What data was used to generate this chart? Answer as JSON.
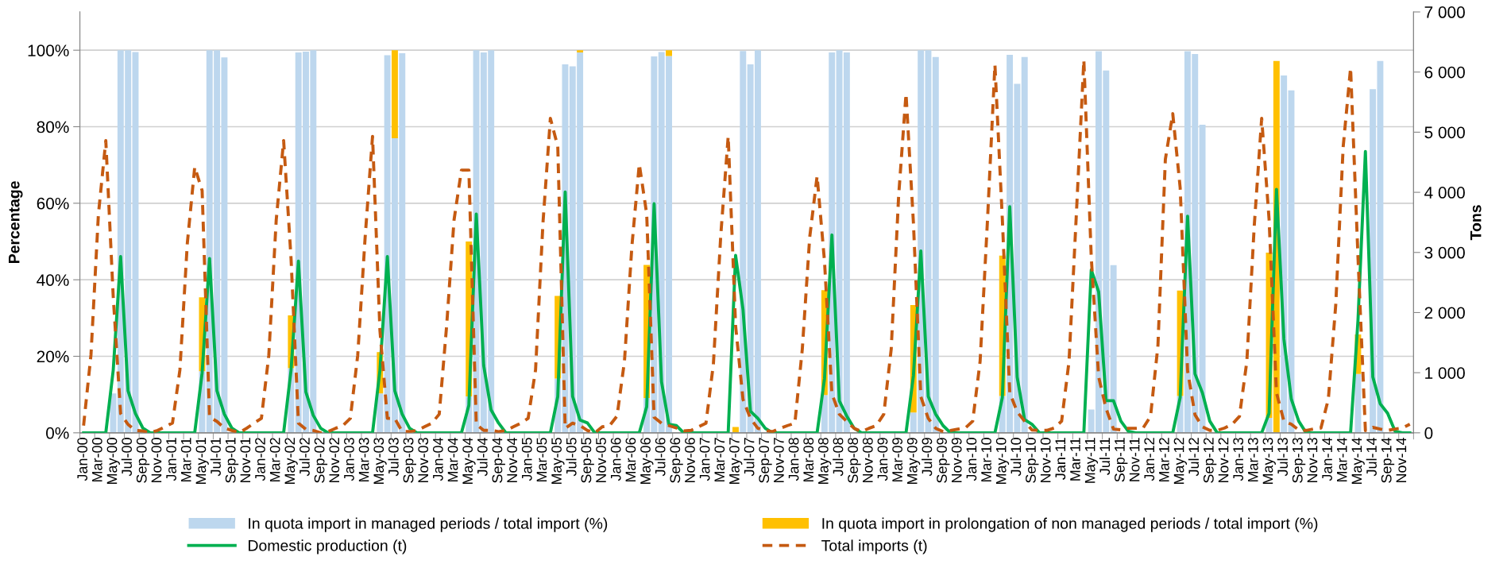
{
  "chart_data": {
    "type": "bar",
    "stacked": true,
    "grid": "y",
    "legend": "bottom",
    "ylabel": "Percentage",
    "y2label": "Tons",
    "categories": [
      "Jan-00",
      null,
      "Mar-00",
      null,
      "May-00",
      null,
      "Jul-00",
      null,
      "Sep-00",
      null,
      "Nov-00",
      null,
      "Jan-01",
      null,
      "Mar-01",
      null,
      "May-01",
      null,
      "Jul-01",
      null,
      "Sep-01",
      null,
      "Nov-01",
      null,
      "Jan-02",
      null,
      "Mar-02",
      null,
      "May-02",
      null,
      "Jul-02",
      null,
      "Sep-02",
      null,
      "Nov-02",
      null,
      "Jan-03",
      null,
      "Mar-03",
      null,
      "May-03",
      null,
      "Jul-03",
      null,
      "Sep-03",
      null,
      "Nov-03",
      null,
      "Jan-04",
      null,
      "Mar-04",
      null,
      "May-04",
      null,
      "Jul-04",
      null,
      "Sep-04",
      null,
      "Nov-04",
      null,
      "Jan-05",
      null,
      "Mar-05",
      null,
      "May-05",
      null,
      "Jul-05",
      null,
      "Sep-05",
      null,
      "Nov-05",
      null,
      "Jan-06",
      null,
      "Mar-06",
      null,
      "May-06",
      null,
      "Jul-06",
      null,
      "Sep-06",
      null,
      "Nov-06",
      null,
      "Jan-07",
      null,
      "Mar-07",
      null,
      "May-07",
      null,
      "Jul-07",
      null,
      "Sep-07",
      null,
      "Nov-07",
      null,
      "Jan-08",
      null,
      "Mar-08",
      null,
      "May-08",
      null,
      "Jul-08",
      null,
      "Sep-08",
      null,
      "Nov-08",
      null,
      "Jan-09",
      null,
      "Mar-09",
      null,
      "May-09",
      null,
      "Jul-09",
      null,
      "Sep-09",
      null,
      "Nov-09",
      null,
      "Jan-10",
      null,
      "Mar-10",
      null,
      "May-10",
      null,
      "Jul-10",
      null,
      "Sep-10",
      null,
      "Nov-10",
      null,
      "Jan-11",
      null,
      "Mar-11",
      null,
      "May-11",
      null,
      "Jul-11",
      null,
      "Sep-11",
      null,
      "Nov-11",
      null,
      "Jan-12",
      null,
      "Mar-12",
      null,
      "May-12",
      null,
      "Jul-12",
      null,
      "Sep-12",
      null,
      "Nov-12",
      null,
      "Jan-13",
      null,
      "Mar-13",
      null,
      "May-13",
      null,
      "Jul-13",
      null,
      "Sep-13",
      null,
      "Nov-13",
      null,
      "Jan-14",
      null,
      "Mar-14",
      null,
      "May-14",
      null,
      "Jul-14",
      null,
      "Sep-14",
      null,
      "Nov-14",
      null
    ],
    "ylim": [
      0,
      110
    ],
    "yticks": [
      {
        "value": 0,
        "label": "0%"
      },
      {
        "value": 20,
        "label": "20%"
      },
      {
        "value": 40,
        "label": "40%"
      },
      {
        "value": 60,
        "label": "60%"
      },
      {
        "value": 80,
        "label": "80%"
      },
      {
        "value": 100,
        "label": "100%"
      }
    ],
    "y2lim": [
      0,
      7000
    ],
    "y2ticks": [
      0,
      {
        "value": 1000,
        "label": "1 000"
      },
      {
        "value": 2000,
        "label": "2 000"
      },
      {
        "value": 3000,
        "label": "3 000"
      },
      {
        "value": 4000,
        "label": "4 000"
      },
      {
        "value": 5000,
        "label": "5 000"
      },
      {
        "value": 6000,
        "label": "6 000"
      },
      {
        "value": 7000,
        "label": "7 000"
      }
    ],
    "series": [
      {
        "name": "In quota import in managed periods / total import (%)",
        "color": "#bdd7ee",
        "values": [
          null,
          null,
          null,
          null,
          10.3,
          100,
          100,
          99.5,
          null,
          null,
          null,
          null,
          null,
          null,
          null,
          null,
          16.1,
          100,
          100,
          98.1,
          null,
          null,
          null,
          null,
          null,
          null,
          null,
          null,
          16.9,
          99.4,
          99.6,
          100,
          null,
          null,
          null,
          null,
          null,
          null,
          null,
          null,
          10.3,
          98.7,
          77.0,
          99.2,
          null,
          null,
          null,
          null,
          null,
          null,
          null,
          null,
          9.5,
          100,
          99.4,
          100,
          null,
          null,
          null,
          null,
          null,
          null,
          null,
          null,
          14.2,
          96.3,
          95.8,
          99.4,
          null,
          null,
          null,
          null,
          null,
          null,
          null,
          null,
          9.1,
          98.4,
          99.5,
          98.5,
          null,
          null,
          null,
          null,
          null,
          null,
          null,
          null,
          null,
          99.8,
          96.3,
          100,
          null,
          null,
          null,
          null,
          null,
          null,
          null,
          null,
          9.9,
          99.4,
          100,
          99.4,
          null,
          null,
          null,
          null,
          null,
          null,
          null,
          null,
          5.3,
          100,
          100,
          98.2,
          null,
          null,
          null,
          null,
          null,
          null,
          null,
          null,
          9.6,
          98.8,
          91.2,
          98.2,
          null,
          null,
          null,
          null,
          null,
          null,
          null,
          null,
          6.1,
          99.7,
          94.7,
          43.8,
          null,
          null,
          null,
          null,
          null,
          null,
          null,
          null,
          9.6,
          99.7,
          99.0,
          80.5,
          null,
          null,
          null,
          null,
          null,
          null,
          null,
          null,
          3.9,
          null,
          93.4,
          89.5,
          null,
          null,
          null,
          null,
          null,
          null,
          null,
          null,
          15.4,
          null,
          89.8,
          97.2,
          null,
          null,
          null,
          null
        ]
      },
      {
        "name": "In quota import in prolongation of non managed periods / total import (%)",
        "color": "#ffc000",
        "values": [
          null,
          null,
          null,
          null,
          null,
          null,
          null,
          null,
          null,
          null,
          null,
          null,
          null,
          null,
          null,
          null,
          19.3,
          null,
          null,
          null,
          null,
          null,
          null,
          null,
          null,
          null,
          null,
          null,
          13.8,
          null,
          null,
          null,
          null,
          null,
          null,
          null,
          null,
          null,
          null,
          null,
          10.8,
          null,
          23.0,
          null,
          null,
          null,
          null,
          null,
          null,
          null,
          null,
          null,
          40.5,
          null,
          null,
          null,
          null,
          null,
          null,
          null,
          null,
          null,
          null,
          null,
          21.6,
          null,
          null,
          0.6,
          null,
          null,
          null,
          null,
          null,
          null,
          null,
          null,
          34.8,
          null,
          null,
          1.5,
          null,
          null,
          null,
          null,
          null,
          null,
          null,
          null,
          1.5,
          null,
          null,
          null,
          null,
          null,
          null,
          null,
          null,
          null,
          null,
          null,
          27.4,
          null,
          null,
          null,
          null,
          null,
          null,
          null,
          null,
          null,
          null,
          null,
          28.1,
          null,
          null,
          null,
          null,
          null,
          null,
          null,
          null,
          null,
          null,
          null,
          36.7,
          null,
          null,
          null,
          null,
          null,
          null,
          null,
          null,
          null,
          null,
          null,
          null,
          null,
          null,
          null,
          null,
          null,
          null,
          null,
          null,
          null,
          null,
          null,
          27.6,
          null,
          null,
          null,
          null,
          null,
          null,
          null,
          null,
          null,
          null,
          null,
          43.2,
          97.2,
          null,
          null,
          null,
          null,
          null,
          null,
          null,
          null,
          null,
          null,
          10.3,
          null,
          null,
          null,
          null,
          null,
          null,
          null
        ]
      },
      {
        "name": "Domestic production (t)",
        "type": "line",
        "axis": "y2",
        "line_style": "solid",
        "color": "#00b050",
        "values": [
          0,
          0,
          0,
          0,
          1040,
          2930,
          700,
          320,
          80,
          0,
          0,
          0,
          0,
          0,
          0,
          0,
          996,
          2900,
          700,
          310,
          80,
          0,
          0,
          0,
          0,
          0,
          0,
          0,
          1040,
          2855,
          680,
          290,
          75,
          0,
          0,
          0,
          0,
          0,
          0,
          0,
          1040,
          2930,
          700,
          310,
          75,
          0,
          0,
          0,
          0,
          0,
          0,
          0,
          457,
          3640,
          1120,
          380,
          164,
          0,
          0,
          0,
          0,
          0,
          0,
          0,
          605,
          4005,
          605,
          213,
          164,
          0,
          0,
          0,
          0,
          0,
          0,
          0,
          433,
          3810,
          850,
          140,
          120,
          0,
          0,
          0,
          0,
          0,
          0,
          0,
          2950,
          2050,
          360,
          240,
          75,
          0,
          0,
          0,
          0,
          0,
          0,
          0,
          900,
          3290,
          530,
          280,
          75,
          0,
          0,
          0,
          0,
          0,
          0,
          0,
          950,
          3025,
          605,
          310,
          120,
          0,
          0,
          0,
          0,
          0,
          0,
          0,
          587,
          3760,
          928,
          220,
          142,
          0,
          0,
          0,
          0,
          0,
          0,
          0,
          2710,
          2345,
          535,
          535,
          194,
          26,
          0,
          0,
          0,
          0,
          0,
          0,
          587,
          3603,
          980,
          666,
          194,
          0,
          0,
          0,
          0,
          0,
          0,
          0,
          325,
          4049,
          1558,
          561,
          194,
          0,
          0,
          0,
          0,
          0,
          0,
          0,
          1872,
          4678,
          928,
          482,
          325,
          26,
          0,
          0
        ]
      },
      {
        "name": "Total imports (t)",
        "type": "line",
        "axis": "y2",
        "line_style": "dashed",
        "color": "#c55a11",
        "values": [
          120,
          1300,
          3630,
          4860,
          2270,
          320,
          140,
          40,
          30,
          0,
          40,
          100,
          164,
          1045,
          3150,
          4420,
          4030,
          260,
          190,
          80,
          40,
          0,
          75,
          160,
          240,
          1290,
          3540,
          4860,
          2900,
          160,
          60,
          40,
          0,
          20,
          75,
          120,
          240,
          1290,
          3250,
          4930,
          1700,
          240,
          240,
          20,
          20,
          40,
          100,
          160,
          310,
          1780,
          3540,
          4370,
          4370,
          140,
          40,
          40,
          20,
          40,
          100,
          160,
          240,
          1045,
          3490,
          5230,
          4760,
          75,
          160,
          120,
          40,
          0,
          100,
          120,
          280,
          1190,
          3100,
          4470,
          3640,
          260,
          160,
          120,
          80,
          30,
          40,
          100,
          160,
          1140,
          3290,
          4930,
          1780,
          555,
          240,
          75,
          40,
          20,
          75,
          120,
          160,
          1390,
          3250,
          4270,
          2850,
          650,
          310,
          190,
          75,
          20,
          75,
          120,
          310,
          1390,
          3930,
          5640,
          3490,
          600,
          240,
          75,
          20,
          40,
          60,
          80,
          194,
          1190,
          3550,
          6120,
          3550,
          666,
          350,
          194,
          47,
          40,
          40,
          80,
          194,
          1190,
          3660,
          6200,
          2920,
          928,
          404,
          63,
          50,
          75,
          75,
          80,
          273,
          1453,
          4547,
          5308,
          4075,
          1033,
          300,
          100,
          40,
          40,
          80,
          140,
          273,
          1190,
          3446,
          5230,
          3550,
          666,
          194,
          142,
          47,
          40,
          63,
          80,
          561,
          2135,
          4757,
          6070,
          2920,
          37,
          90,
          63,
          40,
          63,
          80,
          142
        ]
      }
    ]
  }
}
